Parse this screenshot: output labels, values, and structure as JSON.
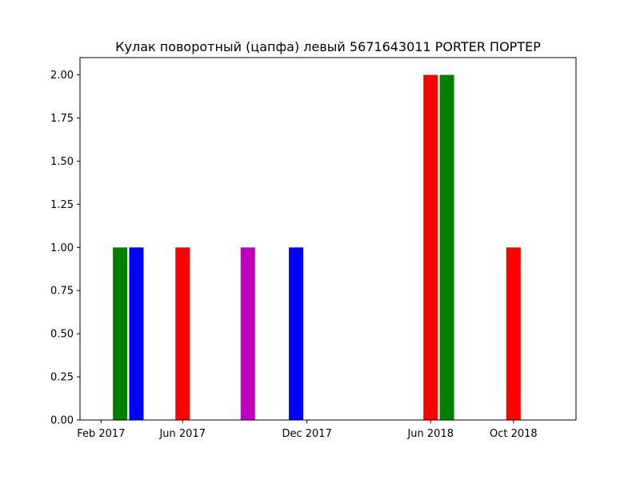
{
  "chart_data": {
    "type": "bar",
    "title": "Кулак поворотный (цапфа) левый 5671643011 PORTER ПОРТЕР",
    "xlabel": "",
    "ylabel": "",
    "ylim": [
      0,
      2.1
    ],
    "xlim": [
      "2017-01-01",
      "2019-01-01"
    ],
    "yticks": [
      0.0,
      0.25,
      0.5,
      0.75,
      1.0,
      1.25,
      1.5,
      1.75,
      2.0
    ],
    "ytick_labels": [
      "0.00",
      "0.25",
      "0.50",
      "0.75",
      "1.00",
      "1.25",
      "1.50",
      "1.75",
      "2.00"
    ],
    "xticks": [
      {
        "date": "2017-02-01",
        "label": "Feb 2017"
      },
      {
        "date": "2017-06-01",
        "label": "Jun 2017"
      },
      {
        "date": "2017-12-01",
        "label": "Dec 2017"
      },
      {
        "date": "2018-06-01",
        "label": "Jun 2018"
      },
      {
        "date": "2018-10-01",
        "label": "Oct 2018"
      }
    ],
    "bars": [
      {
        "date": "2017-03-01",
        "value": 1,
        "color": "#008000"
      },
      {
        "date": "2017-03-25",
        "value": 1,
        "color": "#0000ff"
      },
      {
        "date": "2017-06-01",
        "value": 1,
        "color": "#ff0000"
      },
      {
        "date": "2017-09-05",
        "value": 1,
        "color": "#bf00bf"
      },
      {
        "date": "2017-11-15",
        "value": 1,
        "color": "#0000ff"
      },
      {
        "date": "2018-06-01",
        "value": 2,
        "color": "#ff0000"
      },
      {
        "date": "2018-06-25",
        "value": 2,
        "color": "#008000"
      },
      {
        "date": "2018-10-01",
        "value": 1,
        "color": "#ff0000"
      }
    ],
    "grid": false,
    "legend": "none"
  }
}
